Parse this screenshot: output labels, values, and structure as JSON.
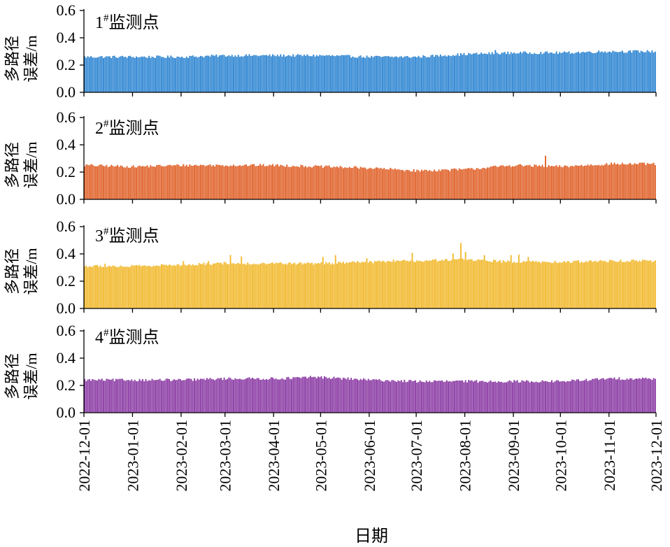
{
  "chart_data": {
    "type": "bar",
    "x_axis": {
      "label": "日期",
      "tick_labels": [
        "2022-12-01",
        "2023-01-01",
        "2023-02-01",
        "2023-03-01",
        "2023-04-01",
        "2023-05-01",
        "2023-06-01",
        "2023-07-01",
        "2023-08-01",
        "2023-09-01",
        "2023-10-01",
        "2023-11-01",
        "2023-12-01"
      ],
      "range": [
        "2022-12-01",
        "2023-12-01"
      ]
    },
    "y_axis": {
      "label": "多路径误差/m",
      "label_lines": [
        "多路径",
        "误差/m"
      ],
      "range": [
        0,
        0.6
      ],
      "ticks": [
        0.0,
        0.2,
        0.4,
        0.6
      ],
      "tick_labels": [
        "0.0",
        "0.2",
        "0.4",
        "0.6"
      ]
    },
    "series": [
      {
        "label_main": "1",
        "label_sup": "#",
        "label_rest": "监测点",
        "color": "#2f86d2",
        "monthly_typical_values": [
          0.26,
          0.26,
          0.26,
          0.27,
          0.27,
          0.27,
          0.26,
          0.26,
          0.28,
          0.29,
          0.29,
          0.3
        ],
        "peak": {
          "date": "2023-08-20",
          "value": 0.31
        }
      },
      {
        "label_main": "2",
        "label_sup": "#",
        "label_rest": "监测点",
        "color": "#e0622a",
        "monthly_typical_values": [
          0.25,
          0.24,
          0.25,
          0.25,
          0.25,
          0.24,
          0.23,
          0.21,
          0.22,
          0.25,
          0.24,
          0.26
        ],
        "peak": {
          "date": "2023-09-21",
          "value": 0.32
        }
      },
      {
        "label_main": "3",
        "label_sup": "#",
        "label_rest": "监测点",
        "color": "#f1b92e",
        "monthly_typical_values": [
          0.31,
          0.31,
          0.32,
          0.33,
          0.33,
          0.33,
          0.34,
          0.35,
          0.36,
          0.34,
          0.34,
          0.35
        ],
        "peak": {
          "date": "2023-07-29",
          "value": 0.48
        }
      },
      {
        "label_main": "4",
        "label_sup": "#",
        "label_rest": "监测点",
        "color": "#8b3ba4",
        "monthly_typical_values": [
          0.24,
          0.24,
          0.24,
          0.25,
          0.25,
          0.26,
          0.24,
          0.23,
          0.23,
          0.23,
          0.23,
          0.25
        ],
        "peak": {
          "date": "2023-04-24",
          "value": 0.27
        }
      }
    ],
    "legend": "none",
    "grid": false
  }
}
